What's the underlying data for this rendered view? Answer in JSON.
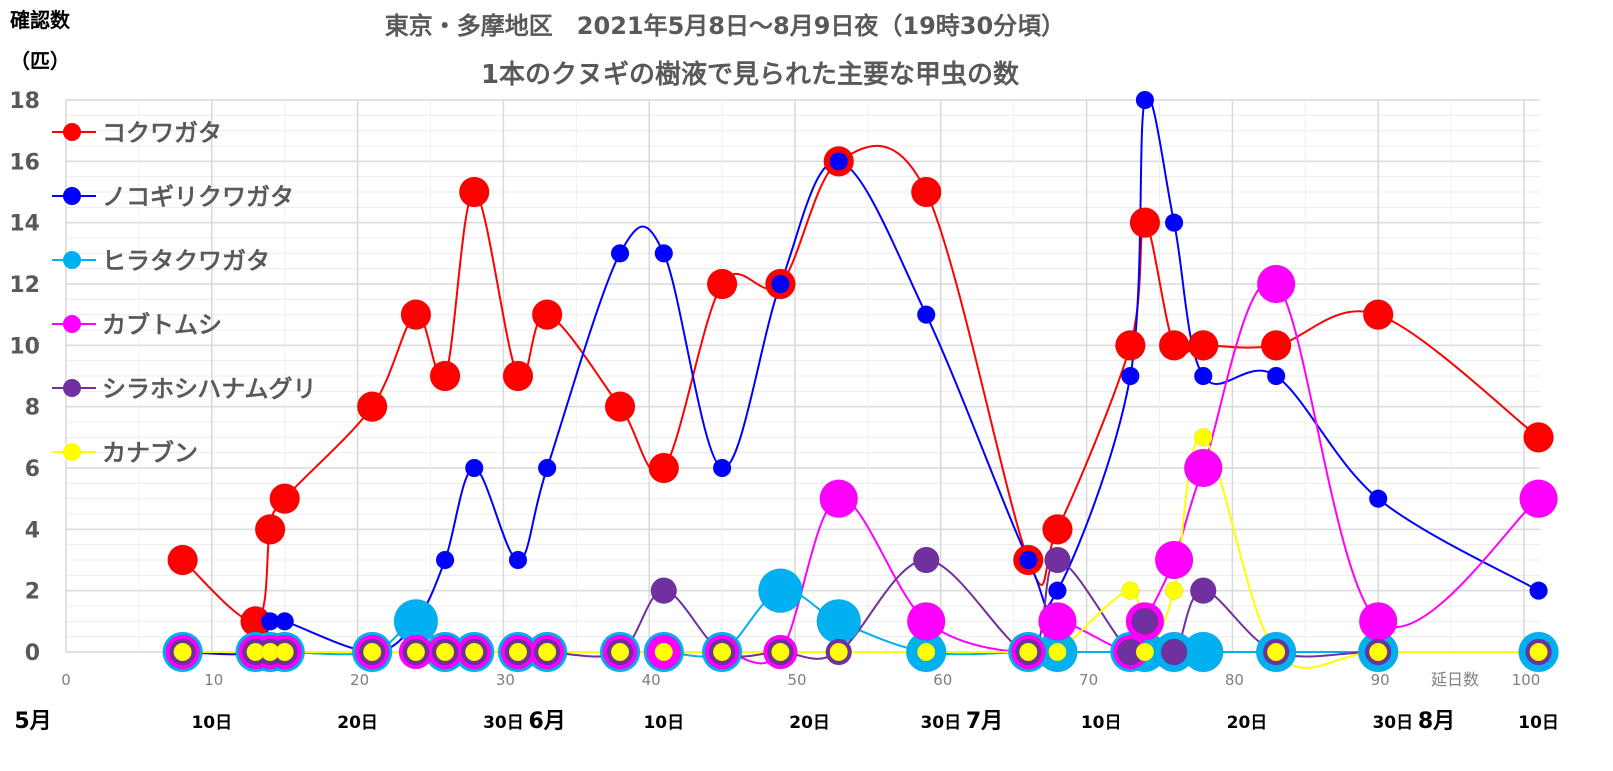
{
  "chart_data": {
    "type": "line",
    "title": [
      "東京・多摩地区　2021年5月8日～8月9日夜（19時30分頃）",
      "1本のクヌギの樹液で見られた主要な甲虫の数"
    ],
    "ylabel": [
      "確認数",
      "（匹）"
    ],
    "xlabel": "延日数",
    "xlim": [
      0,
      102
    ],
    "ylim": [
      0,
      18
    ],
    "xticks": [
      0,
      10,
      20,
      30,
      40,
      50,
      60,
      70,
      80,
      90,
      100
    ],
    "yticks": [
      0,
      2,
      4,
      6,
      8,
      10,
      12,
      14,
      16,
      18
    ],
    "grid": true,
    "smooth": true,
    "legend_position": "left",
    "date_labels": [
      {
        "day": 0,
        "text": "5月"
      },
      {
        "day": 10,
        "text": "10日"
      },
      {
        "day": 20,
        "text": "20日"
      },
      {
        "day": 30,
        "text": "30日"
      },
      {
        "day": 33,
        "text": "6月"
      },
      {
        "day": 41,
        "text": "10日"
      },
      {
        "day": 51,
        "text": "20日"
      },
      {
        "day": 60,
        "text": "30日"
      },
      {
        "day": 63,
        "text": "7月"
      },
      {
        "day": 71,
        "text": "10日"
      },
      {
        "day": 81,
        "text": "20日"
      },
      {
        "day": 91,
        "text": "30日"
      },
      {
        "day": 94,
        "text": "8月"
      },
      {
        "day": 101,
        "text": "10日"
      }
    ],
    "x": [
      8,
      13,
      14,
      15,
      21,
      24,
      26,
      28,
      31,
      33,
      38,
      41,
      45,
      49,
      53,
      59,
      66,
      68,
      73,
      74,
      76,
      78,
      83,
      90,
      101
    ],
    "series": [
      {
        "name": "コクワガタ",
        "color": "#FF0000",
        "values": [
          3,
          1,
          4,
          5,
          8,
          11,
          9,
          15,
          9,
          11,
          8,
          6,
          12,
          12,
          16,
          15,
          3,
          4,
          10,
          14,
          10,
          10,
          10,
          11,
          7
        ]
      },
      {
        "name": "ノコギリクワガタ",
        "color": "#0000FF",
        "values": [
          0,
          0,
          1,
          1,
          0,
          1,
          3,
          6,
          3,
          6,
          13,
          13,
          6,
          12,
          16,
          11,
          3,
          2,
          9,
          18,
          14,
          9,
          9,
          5,
          2
        ]
      },
      {
        "name": "ヒラタクワガタ",
        "color": "#00B0F0",
        "values": [
          0,
          0,
          0,
          0,
          0,
          1,
          0,
          0,
          0,
          0,
          0,
          0,
          0,
          2,
          1,
          0,
          0,
          0,
          0,
          0,
          0,
          0,
          0,
          0,
          0
        ]
      },
      {
        "name": "カブトムシ",
        "color": "#FF00FF",
        "values": [
          0,
          0,
          0,
          0,
          0,
          0,
          0,
          0,
          0,
          0,
          0,
          0,
          0,
          0,
          5,
          1,
          0,
          1,
          0,
          1,
          3,
          6,
          12,
          1,
          5
        ]
      },
      {
        "name": "シラホシハナムグリ",
        "color": "#7030A0",
        "values": [
          0,
          0,
          0,
          0,
          0,
          0,
          0,
          0,
          0,
          0,
          0,
          2,
          0,
          0,
          0,
          3,
          0,
          3,
          0,
          1,
          0,
          2,
          0,
          0,
          0
        ]
      },
      {
        "name": "カナブン",
        "color": "#FFFF00",
        "values": [
          0,
          0,
          0,
          0,
          0,
          0,
          0,
          0,
          0,
          0,
          0,
          0,
          0,
          0,
          0,
          0,
          0,
          0,
          2,
          0,
          2,
          7,
          0,
          0,
          0
        ]
      }
    ]
  }
}
